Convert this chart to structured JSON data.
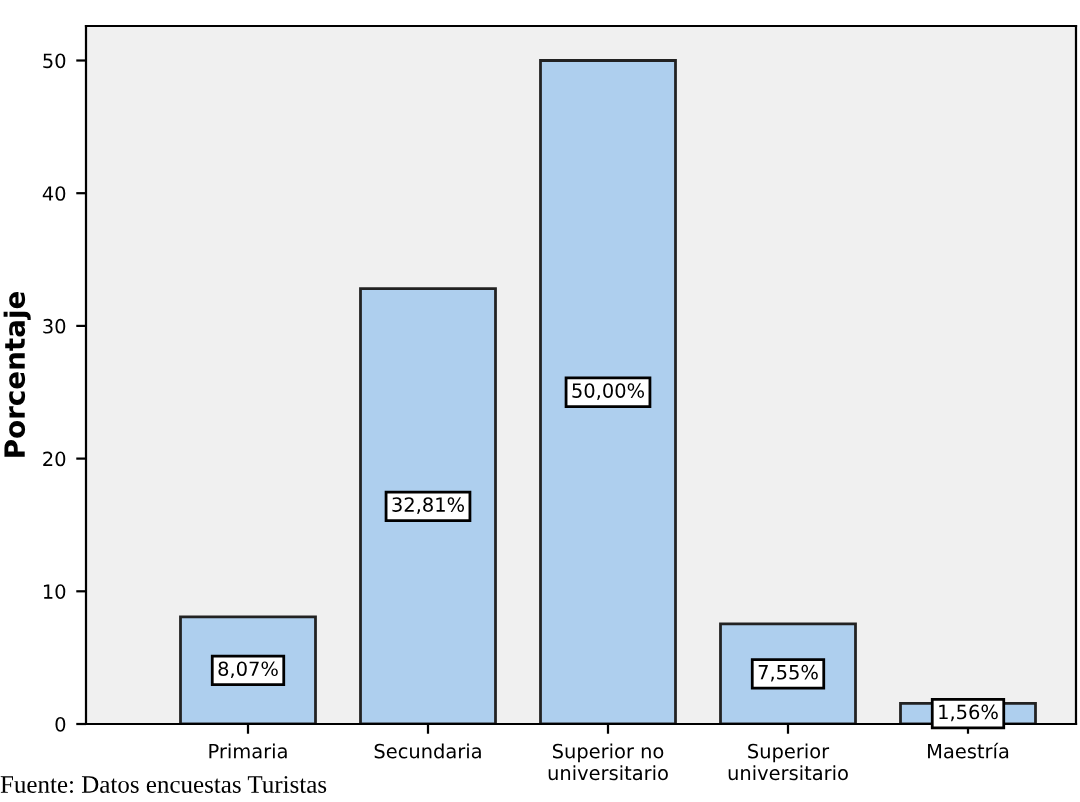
{
  "chart_data": {
    "type": "bar",
    "ylabel": "Porcentaje",
    "categories": [
      "Primaria",
      "Secundaria",
      "Superior no\nuniversitario",
      "Superior\nuniversitario",
      "Maestría"
    ],
    "values": [
      8.07,
      32.81,
      50.0,
      7.55,
      1.56
    ],
    "value_labels": [
      "8,07%",
      "32,81%",
      "50,00%",
      "7,55%",
      "1,56%"
    ],
    "color": "#aecfee",
    "ylim": [
      0,
      52.6
    ],
    "yticks": [
      0,
      10,
      20,
      30,
      40,
      50
    ],
    "grid": false,
    "annotations": [
      "Fuente: Datos encuestas Turistas"
    ]
  }
}
